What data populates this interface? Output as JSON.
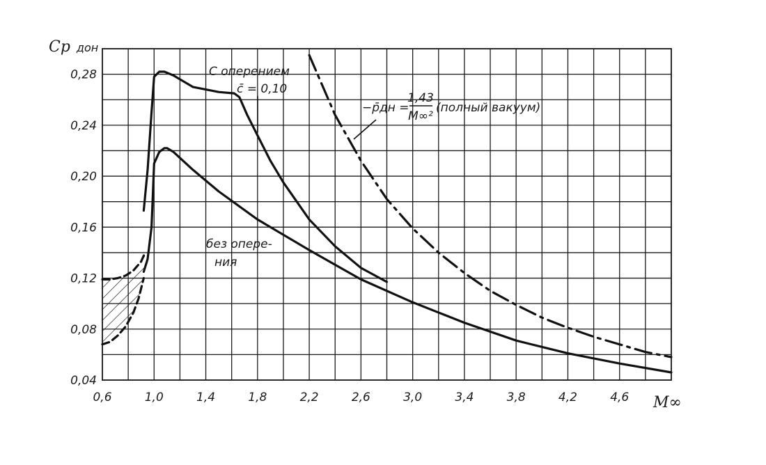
{
  "chart_data": {
    "type": "line",
    "ylabel": "Cp дон",
    "ylabel_main": "Cp",
    "ylabel_sub": "дон",
    "xlabel": "M∞",
    "xlim": [
      0.6,
      5.0
    ],
    "ylim": [
      0.04,
      0.3
    ],
    "grid": true,
    "x_ticks": [
      "0,6",
      "1,0",
      "1,4",
      "1,8",
      "2,2",
      "2,6",
      "3,0",
      "3,4",
      "3,8",
      "4,2",
      "4,6"
    ],
    "x_tick_values": [
      0.6,
      1.0,
      1.4,
      1.8,
      2.2,
      2.6,
      3.0,
      3.4,
      3.8,
      4.2,
      4.6
    ],
    "y_ticks": [
      "0,04",
      "0,08",
      "0,12",
      "0,16",
      "0,20",
      "0,24",
      "0,28"
    ],
    "y_tick_values": [
      0.04,
      0.08,
      0.12,
      0.16,
      0.2,
      0.24,
      0.28
    ],
    "annotations": {
      "with_fins_line1": "С оперением",
      "with_fins_line2": "c̄ = 0,10",
      "without_fins_line1": "без опере-",
      "without_fins_line2": "ния",
      "vacuum": "−p̄дн = 1,43 / M∞² (полный вакуум)",
      "vacuum_lhs": "−p̄дн =",
      "vacuum_num": "1,43",
      "vacuum_den": "M∞²",
      "vacuum_note": "(полный вакуум)"
    },
    "series": [
      {
        "key": "with_fins",
        "style": "solid",
        "x": [
          0.92,
          0.95,
          0.98,
          1.0,
          1.04,
          1.08,
          1.15,
          1.3,
          1.5,
          1.62,
          1.66,
          1.72,
          1.8,
          1.9,
          2.0,
          2.2,
          2.4,
          2.6,
          2.8
        ],
        "y": [
          0.173,
          0.205,
          0.25,
          0.278,
          0.282,
          0.282,
          0.279,
          0.27,
          0.266,
          0.265,
          0.262,
          0.248,
          0.232,
          0.212,
          0.195,
          0.166,
          0.145,
          0.128,
          0.117
        ]
      },
      {
        "key": "without_fins",
        "style": "solid",
        "x": [
          0.92,
          0.95,
          0.98,
          1.0,
          1.04,
          1.08,
          1.1,
          1.15,
          1.3,
          1.5,
          1.8,
          2.2,
          2.6,
          3.0,
          3.4,
          3.8,
          4.2,
          4.6,
          5.0
        ],
        "y": [
          0.125,
          0.135,
          0.16,
          0.21,
          0.219,
          0.222,
          0.222,
          0.219,
          0.205,
          0.188,
          0.166,
          0.142,
          0.119,
          0.101,
          0.085,
          0.071,
          0.061,
          0.053,
          0.046
        ]
      },
      {
        "key": "vacuum",
        "style": "dashdot",
        "x": [
          2.2,
          2.4,
          2.6,
          2.8,
          3.0,
          3.2,
          3.4,
          3.6,
          3.8,
          4.0,
          4.2,
          4.4,
          4.6,
          4.8,
          5.0
        ],
        "y": [
          0.295,
          0.248,
          0.212,
          0.182,
          0.159,
          0.14,
          0.124,
          0.11,
          0.099,
          0.089,
          0.081,
          0.074,
          0.068,
          0.062,
          0.058
        ]
      },
      {
        "key": "upper_bound_dashed",
        "style": "dashed",
        "x": [
          0.6,
          0.66,
          0.72,
          0.78,
          0.84,
          0.9,
          0.93
        ],
        "y": [
          0.119,
          0.119,
          0.12,
          0.122,
          0.126,
          0.133,
          0.14
        ]
      },
      {
        "key": "lower_bound_dashed",
        "style": "dashed",
        "x": [
          0.6,
          0.66,
          0.72,
          0.78,
          0.84,
          0.88,
          0.92
        ],
        "y": [
          0.068,
          0.07,
          0.075,
          0.082,
          0.093,
          0.104,
          0.12
        ]
      }
    ],
    "hatched_region": {
      "x_range": [
        0.6,
        0.92
      ],
      "between": [
        "lower_bound_dashed",
        "upper_bound_dashed"
      ]
    }
  }
}
